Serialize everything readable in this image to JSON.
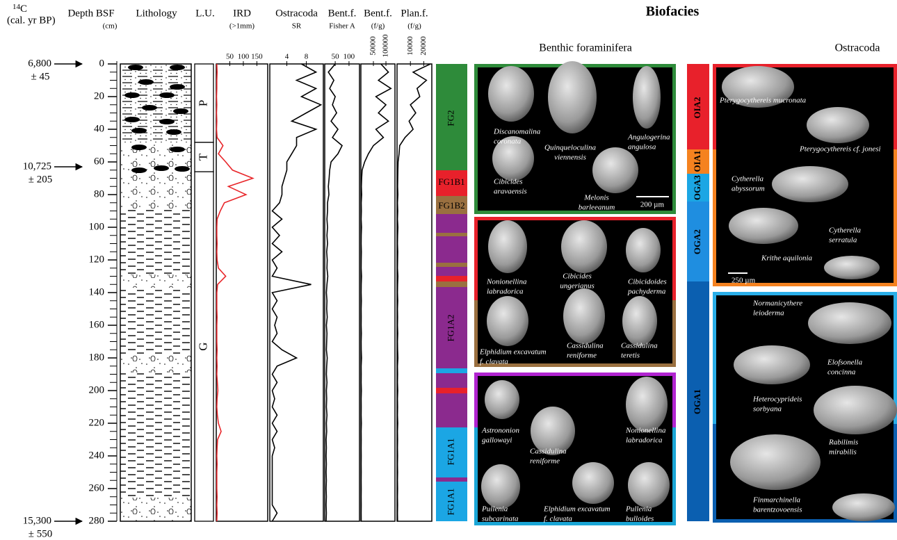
{
  "chart_data": {
    "type": "log",
    "age_header": {
      "mass": "14",
      "element": "C",
      "unit": "(cal. yr BP)"
    },
    "depth_title": "Depth BSF",
    "depth_unit": "(cm)",
    "lithology_title": "Lithology",
    "units_title": "L.U.",
    "ylim": [
      0,
      280
    ],
    "yticks": [
      0,
      20,
      40,
      60,
      80,
      100,
      120,
      140,
      160,
      180,
      200,
      220,
      240,
      260,
      280
    ],
    "ages": [
      {
        "depth": 0,
        "age": "6,800",
        "error": "± 45"
      },
      {
        "depth": 63,
        "age": "10,725",
        "error": "± 205"
      },
      {
        "depth": 280,
        "age": "15,300",
        "error": "± 550"
      }
    ],
    "units": [
      {
        "label": "P",
        "top": 0,
        "base": 48
      },
      {
        "label": "T",
        "top": 48,
        "base": 66
      },
      {
        "label": "G",
        "top": 66,
        "base": 280
      }
    ],
    "depths": [
      0,
      5,
      10,
      15,
      20,
      25,
      30,
      35,
      40,
      45,
      50,
      55,
      60,
      65,
      70,
      75,
      80,
      85,
      90,
      95,
      100,
      105,
      110,
      115,
      120,
      125,
      130,
      135,
      140,
      145,
      150,
      155,
      160,
      165,
      170,
      175,
      180,
      185,
      190,
      195,
      200,
      205,
      210,
      215,
      220,
      225,
      230,
      235,
      240,
      245,
      250,
      255,
      260,
      265,
      270,
      275,
      280
    ],
    "panels": [
      {
        "type": "line",
        "title": "IRD",
        "subtitle": "(>1mm)",
        "color": "#e8262a",
        "xlim": [
          0,
          190
        ],
        "xticks": [
          50,
          100,
          150
        ],
        "values": [
          2,
          3,
          2,
          2,
          1,
          2,
          1,
          2,
          1,
          3,
          25,
          8,
          35,
          60,
          135,
          45,
          110,
          30,
          15,
          3,
          2,
          2,
          3,
          2,
          3,
          8,
          35,
          5,
          2,
          2,
          2,
          3,
          2,
          2,
          2,
          3,
          2,
          3,
          2,
          4,
          6,
          3,
          2,
          4,
          8,
          18,
          5,
          3,
          2,
          3,
          2,
          2,
          2,
          3,
          2,
          3,
          2
        ]
      },
      {
        "type": "line",
        "title": "Ostracoda",
        "subtitle": "SR",
        "color": "#000000",
        "xlim": [
          0.5,
          11.5
        ],
        "xticks": [
          4,
          8
        ],
        "values": [
          7,
          10,
          6,
          10,
          7,
          11,
          8,
          5,
          10,
          6,
          6,
          5,
          4,
          4,
          3.5,
          3,
          3,
          2.5,
          1,
          3,
          1,
          2.5,
          1,
          3,
          1,
          2,
          1,
          9,
          1,
          2,
          1,
          2,
          1.5,
          2,
          1,
          3,
          6,
          2,
          1,
          2,
          1,
          1.5,
          1,
          2,
          1,
          2,
          1,
          1.5,
          1,
          1,
          1,
          1,
          1,
          1,
          1,
          2,
          1
        ]
      },
      {
        "type": "line",
        "title": "Bent.f.",
        "subtitle": "Fisher A",
        "color": "#000000",
        "xlim": [
          12,
          138
        ],
        "xticks": [
          50,
          100
        ],
        "values": [
          50,
          25,
          45,
          30,
          50,
          40,
          55,
          35,
          60,
          40,
          75,
          60,
          35,
          30,
          28,
          25,
          27,
          22,
          22,
          20,
          22,
          20,
          22,
          19,
          21,
          20,
          23,
          20,
          18,
          20,
          19,
          21,
          18,
          20,
          19,
          18,
          21,
          19,
          18,
          20,
          18,
          19,
          18,
          20,
          18,
          19,
          17,
          18,
          17,
          18,
          17,
          18,
          17,
          18,
          17,
          18,
          17
        ]
      },
      {
        "type": "line",
        "title": "Bent.f.",
        "subtitle": "(f/g)",
        "color": "#000000",
        "xlim": [
          0,
          136000
        ],
        "xticks": [
          50000,
          100000
        ],
        "values": [
          80000,
          110000,
          70000,
          120000,
          60000,
          100000,
          70000,
          110000,
          60000,
          90000,
          50000,
          30000,
          15000,
          5000,
          3000,
          2000,
          3000,
          1500,
          2000,
          1000,
          2500,
          1500,
          1000,
          2000,
          1500,
          1000,
          2500,
          1500,
          1000,
          2000,
          1000,
          1500,
          1000,
          2000,
          1000,
          1500,
          2500,
          1000,
          1500,
          1000,
          2000,
          1000,
          1500,
          1000,
          2000,
          1000,
          1500,
          1000,
          1500,
          1000,
          1500,
          1000,
          1500,
          1000,
          1500,
          1000,
          1500
        ]
      },
      {
        "type": "line",
        "title": "Plan.f.",
        "subtitle": "(f/g)",
        "color": "#000000",
        "xlim": [
          0,
          26000
        ],
        "xticks": [
          10000,
          20000
        ],
        "values": [
          25000,
          12000,
          22000,
          15000,
          17000,
          10000,
          14000,
          9000,
          12000,
          6000,
          2000,
          1500,
          800,
          600,
          500,
          400,
          600,
          300,
          500,
          300,
          600,
          400,
          300,
          500,
          400,
          300,
          600,
          400,
          300,
          500,
          300,
          400,
          300,
          500,
          300,
          400,
          600,
          300,
          400,
          300,
          500,
          300,
          400,
          300,
          500,
          300,
          400,
          300,
          400,
          300,
          400,
          300,
          400,
          300,
          400,
          300,
          400
        ]
      }
    ]
  },
  "biofacies": {
    "title": "Biofacies",
    "benthic": {
      "title": "Benthic foraminifera",
      "zones": [
        "FG2",
        "FG1B1",
        "FG1B2",
        "FG1A2",
        "FG1A1",
        "FG1A1"
      ],
      "scale": "200 µm",
      "species": [
        [
          "Discanomalina",
          "coronata"
        ],
        [
          "Quinqueloculina",
          "viennensis"
        ],
        [
          "Angulogerina",
          "angulosa"
        ],
        [
          "Cibicides",
          "aravaensis"
        ],
        [
          "Melonis",
          "barleeanum"
        ],
        [
          "Nonionellina",
          "labradorica"
        ],
        [
          "Cibicides",
          "ungerianus"
        ],
        [
          "Cibicidoides",
          "pachyderma"
        ],
        [
          "Elphidium excavatum",
          "f. clavata"
        ],
        [
          "Cassidulina",
          "reniforme"
        ],
        [
          "Cassidulina",
          "teretis"
        ],
        [
          "Astrononion",
          "gallowayi"
        ],
        [
          "Cassidulina",
          "reniforme"
        ],
        [
          "Nonionellina",
          "labradorica"
        ],
        [
          "Pullenia",
          "subcarinata"
        ],
        [
          "Elphidium excavatum",
          "f. clavata"
        ],
        [
          "Pullenia",
          "bulloides"
        ]
      ]
    },
    "ostracoda": {
      "title": "Ostracoda",
      "zones": [
        "OIA2",
        "OIA1",
        "OGA3",
        "OGA2",
        "OGA1"
      ],
      "scale": "250 µm",
      "species": [
        [
          "Pterygocythereis mucronata"
        ],
        [
          "Pterygocythereis cf. jonesi"
        ],
        [
          "Cytherella",
          "abyssorum"
        ],
        [
          "Cytherella",
          "serratula"
        ],
        [
          "Krithe aquilonia"
        ],
        [
          "Normanicythere",
          "leioderma"
        ],
        [
          "Elofsonella",
          "concinna"
        ],
        [
          "Heterocyprideis",
          "sorbyana"
        ],
        [
          "Rabilimis",
          "mirabilis"
        ],
        [
          "Finmarchinella",
          "barentzovoensis"
        ]
      ]
    }
  }
}
